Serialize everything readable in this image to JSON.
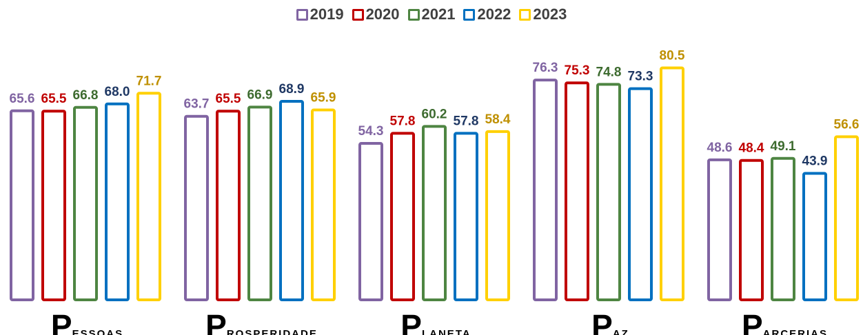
{
  "chart_data": {
    "type": "bar",
    "categories": [
      "Pessoas",
      "Prosperidade",
      "Planeta",
      "Paz",
      "Parcerias"
    ],
    "series": [
      {
        "name": "2019",
        "color": "#8064a2",
        "label_color": "#8064a2",
        "values": [
          65.6,
          63.7,
          54.3,
          76.3,
          48.6
        ]
      },
      {
        "name": "2020",
        "color": "#c00000",
        "label_color": "#c00000",
        "values": [
          65.5,
          65.5,
          57.8,
          75.3,
          48.4
        ]
      },
      {
        "name": "2021",
        "color": "#4e8542",
        "label_color": "#3d6b2f",
        "values": [
          66.8,
          66.9,
          60.2,
          74.8,
          49.1
        ]
      },
      {
        "name": "2022",
        "color": "#0070c0",
        "label_color": "#1f3864",
        "values": [
          68.0,
          68.9,
          57.8,
          73.3,
          43.9
        ]
      },
      {
        "name": "2023",
        "color": "#ffd000",
        "label_color": "#bf9000",
        "values": [
          71.7,
          65.9,
          58.4,
          80.5,
          56.6
        ]
      }
    ],
    "ylim": [
      0,
      100
    ],
    "legend": "top"
  }
}
